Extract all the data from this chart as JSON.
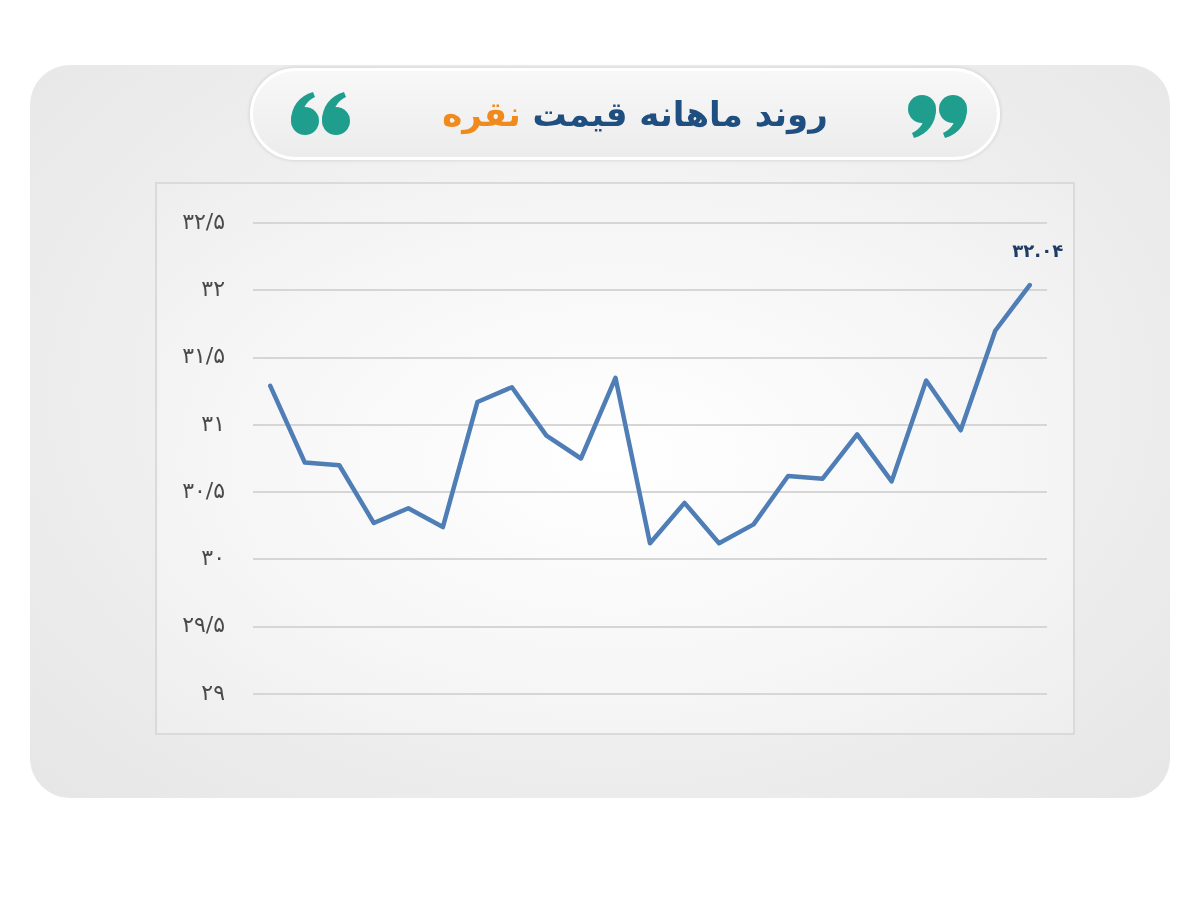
{
  "chart_data": {
    "type": "line",
    "title": "روند ماهانه قیمت نقره",
    "categories": [
      null,
      null,
      null,
      null,
      null,
      null,
      null,
      null,
      null,
      null,
      null,
      null,
      null,
      null,
      null,
      null,
      null,
      null,
      null,
      null,
      null,
      null,
      null
    ],
    "values": [
      31.29,
      30.72,
      30.7,
      30.27,
      30.38,
      30.24,
      31.17,
      31.28,
      30.92,
      30.75,
      31.35,
      30.12,
      30.42,
      30.12,
      30.26,
      30.62,
      30.6,
      30.93,
      30.58,
      31.33,
      30.96,
      31.7,
      32.04
    ],
    "color": "#4f7db5",
    "value_labels": [
      null,
      null,
      null,
      null,
      null,
      null,
      null,
      null,
      null,
      null,
      null,
      null,
      null,
      null,
      null,
      null,
      null,
      null,
      null,
      null,
      null,
      null,
      "۳۲.۰۴"
    ],
    "ylim": [
      29,
      32.5
    ],
    "yticks": [
      {
        "value": 29,
        "label": "۲۹"
      },
      {
        "value": 29.5,
        "label": "۲۹/۵"
      },
      {
        "value": 30,
        "label": "۳۰"
      },
      {
        "value": 30.5,
        "label": "۳۰/۵"
      },
      {
        "value": 31,
        "label": "۳۱"
      },
      {
        "value": 31.5,
        "label": "۳۱/۵"
      },
      {
        "value": 32,
        "label": "۳۲"
      },
      {
        "value": 32.5,
        "label": "۳۲/۵"
      }
    ],
    "grid": "y",
    "tick_labels": "y",
    "marker": "none"
  }
}
